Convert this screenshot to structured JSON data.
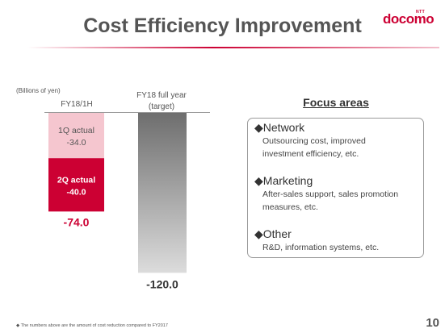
{
  "header": {
    "title": "Cost Efficiency Improvement",
    "logo_superscript": "NTT",
    "logo_text": "docomo"
  },
  "colors": {
    "accent": "#cc0033",
    "q1_bar": "#f5c6cf",
    "q2_bar": "#cc0033",
    "target_bar_top": "#6e6e6e",
    "target_bar_bottom": "#dcdcdc"
  },
  "chart_data": {
    "type": "bar",
    "unit_note": "(Billions of yen)",
    "categories": [
      "FY18/1H",
      "FY18 full year (target)"
    ],
    "category_labels": [
      "FY18/1H",
      "FY18 full year",
      "(target)"
    ],
    "stack": [
      {
        "category": "FY18/1H",
        "name": "1Q actual",
        "value": -34.0,
        "label": "1Q actual",
        "value_label": "-34.0"
      },
      {
        "category": "FY18/1H",
        "name": "2Q actual",
        "value": -40.0,
        "label": "2Q actual",
        "value_label": "-40.0"
      }
    ],
    "totals": [
      {
        "category": "FY18/1H",
        "value": -74.0,
        "label": "-74.0"
      },
      {
        "category": "FY18 full year (target)",
        "value": -120.0,
        "label": "-120.0"
      }
    ],
    "ylim": [
      -120,
      0
    ]
  },
  "focus": {
    "title": "Focus areas",
    "bullet": "◆",
    "areas": [
      {
        "heading": "Network",
        "lines": [
          "Outsourcing cost, improved",
          "investment efficiency, etc."
        ]
      },
      {
        "heading": "Marketing",
        "lines": [
          "After-sales support, sales promotion",
          "measures, etc."
        ]
      },
      {
        "heading": "Other",
        "lines": [
          "R&D, information systems, etc."
        ]
      }
    ]
  },
  "footer": {
    "note": "◆ The numbers above are the amount of cost reduction compared to FY2017",
    "page": "10"
  }
}
